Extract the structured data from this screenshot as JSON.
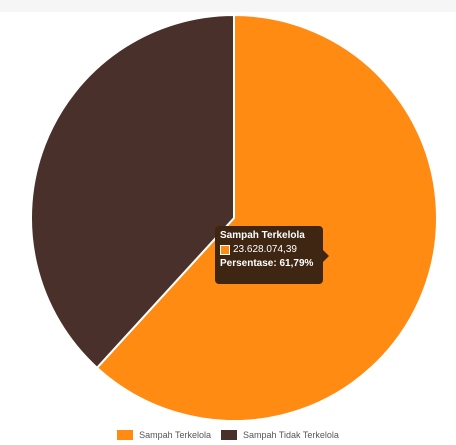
{
  "chart_data": {
    "type": "pie",
    "labels": [
      "Sampah Terkelola",
      "Sampah Tidak Terkelola"
    ],
    "values": [
      61.79,
      38.21
    ],
    "colors": [
      "#ff8b13",
      "#4a302a"
    ],
    "legend_position": "bottom",
    "tooltip": {
      "title": "Sampah Terkelola",
      "value": "23.628.074,39",
      "percentage": "Persentase: 61,79%"
    }
  }
}
